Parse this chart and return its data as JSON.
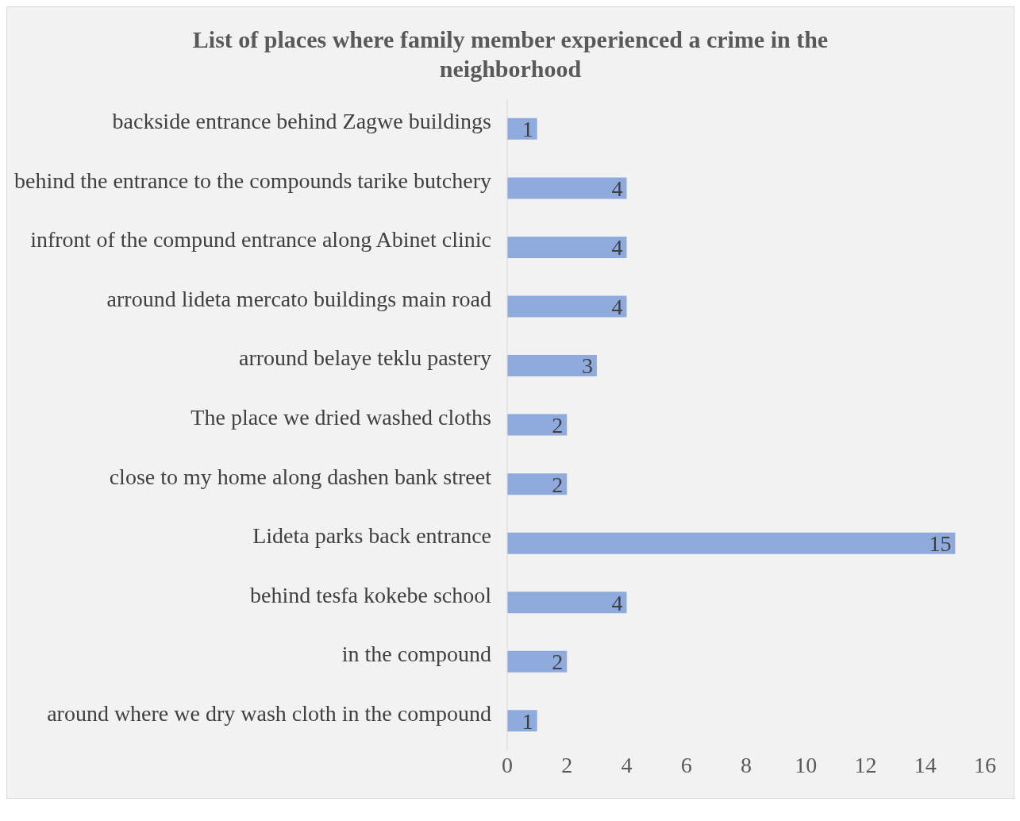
{
  "chart_data": {
    "type": "bar",
    "orientation": "horizontal",
    "title": "List of places where family member experienced a crime in the neighborhood",
    "categories": [
      "backside entrance behind Zagwe buildings",
      "behind the entrance to the compounds tarike butchery",
      "infront of the compund entrance along Abinet clinic",
      "arround lideta mercato buildings main road",
      "arround belaye teklu pastery",
      "The place we dried washed cloths",
      "close to my home along dashen bank street",
      "Lideta parks back entrance",
      "behind tesfa kokebe school",
      "in the compound",
      "around where we dry wash cloth in the compound"
    ],
    "values": [
      1,
      4,
      4,
      4,
      3,
      2,
      2,
      15,
      4,
      2,
      1
    ],
    "color": "#8faadc",
    "xlim": [
      0,
      16
    ],
    "xticks": [
      0,
      2,
      4,
      6,
      8,
      10,
      12,
      14,
      16
    ],
    "grid": false,
    "legend": false,
    "data_labels": true
  }
}
